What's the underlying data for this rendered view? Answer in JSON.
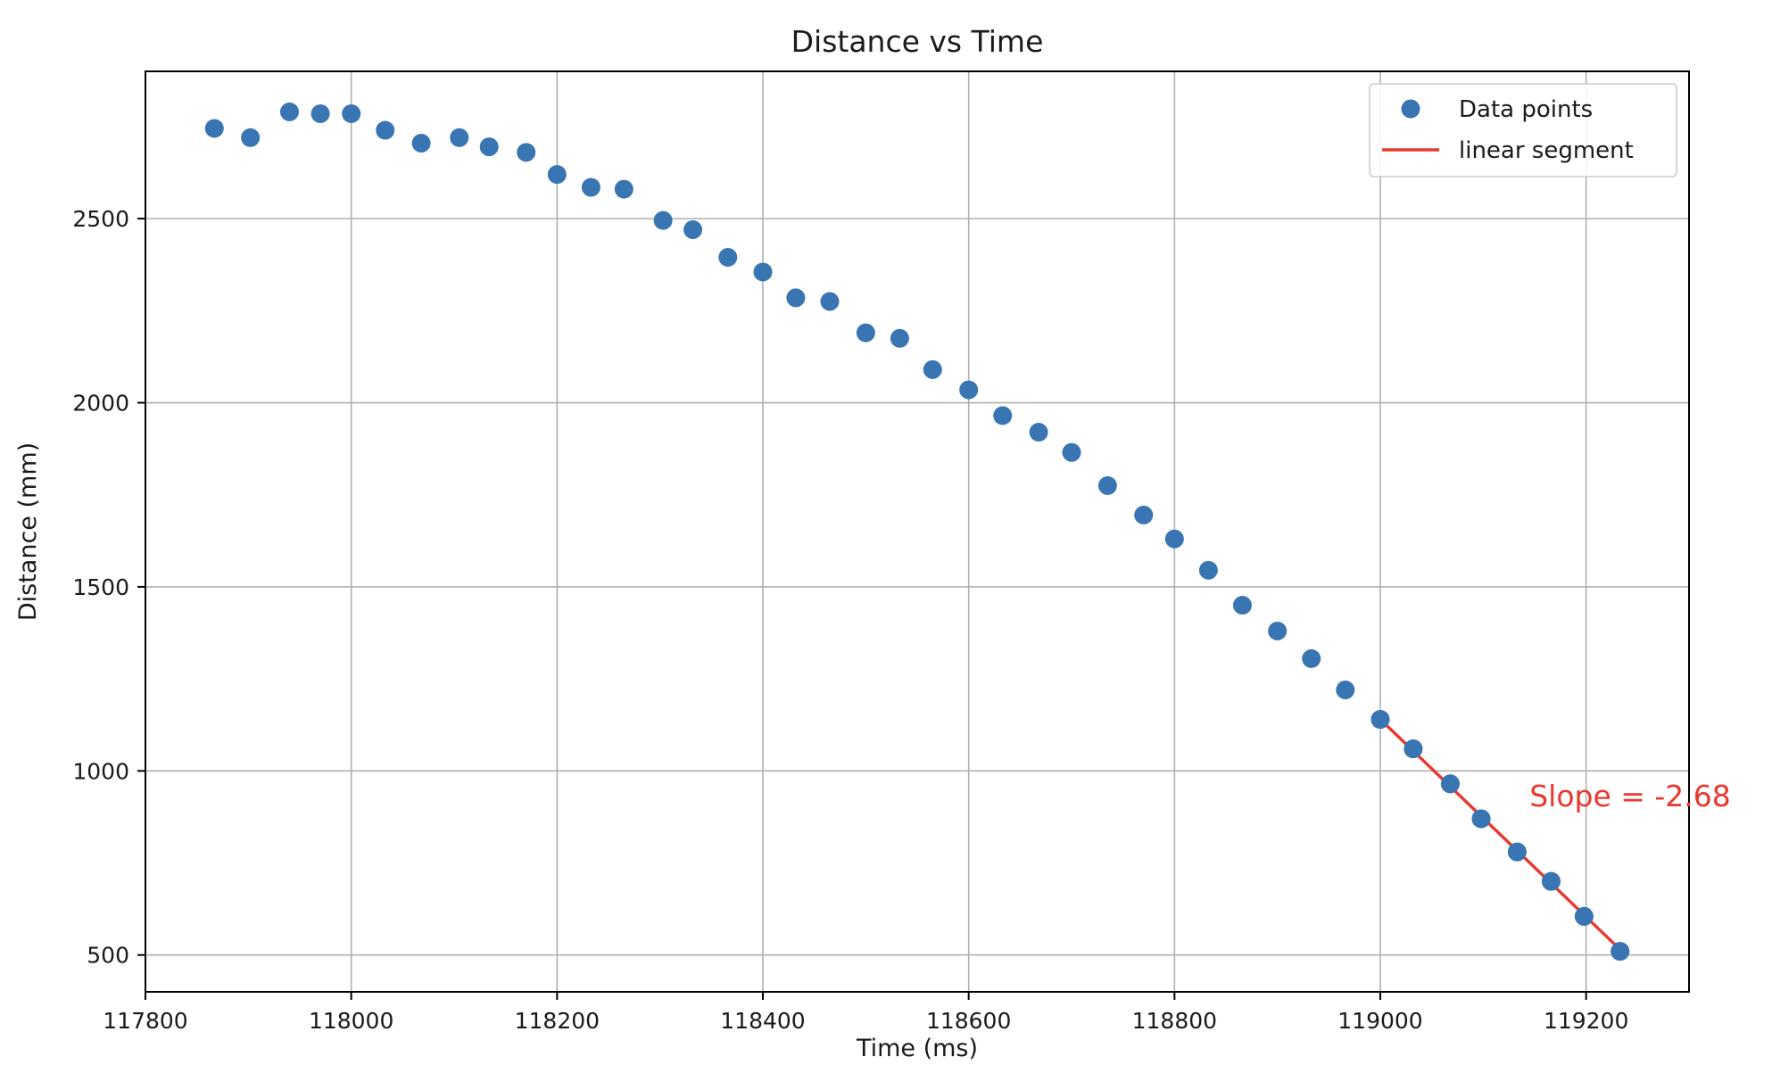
{
  "chart_data": {
    "type": "scatter",
    "title": "Distance vs Time",
    "xlabel": "Time (ms)",
    "ylabel": "Distance (mm)",
    "xlim": [
      117800,
      119300
    ],
    "ylim": [
      400,
      2900
    ],
    "xticks": [
      117800,
      118000,
      118200,
      118400,
      118600,
      118800,
      119000,
      119200
    ],
    "yticks": [
      500,
      1000,
      1500,
      2000,
      2500
    ],
    "grid": true,
    "legend_position": "top-right",
    "series": [
      {
        "name": "Data points",
        "kind": "scatter",
        "color": "#3a75b3",
        "x": [
          117867,
          117902,
          117940,
          117970,
          118000,
          118033,
          118068,
          118105,
          118134,
          118170,
          118200,
          118233,
          118265,
          118303,
          118332,
          118366,
          118400,
          118432,
          118465,
          118500,
          118533,
          118565,
          118600,
          118633,
          118668,
          118700,
          118735,
          118770,
          118800,
          118833,
          118866,
          118900,
          118933,
          118966,
          119000,
          119032,
          119068,
          119098,
          119133,
          119166,
          119198,
          119233
        ],
        "y": [
          2745,
          2720,
          2790,
          2785,
          2785,
          2740,
          2705,
          2720,
          2695,
          2680,
          2620,
          2585,
          2580,
          2495,
          2470,
          2395,
          2355,
          2285,
          2275,
          2190,
          2175,
          2090,
          2035,
          1965,
          1920,
          1865,
          1775,
          1695,
          1630,
          1545,
          1450,
          1380,
          1305,
          1220,
          1140,
          1060,
          965,
          870,
          780,
          700,
          605,
          510
        ]
      },
      {
        "name": "linear segment",
        "kind": "line",
        "color": "#e8382f",
        "x": [
          119000,
          119233
        ],
        "y": [
          1140,
          515
        ]
      }
    ],
    "annotations": [
      {
        "text": "Slope = -2.68",
        "x": 119145,
        "y": 930,
        "color": "#e8382f"
      }
    ]
  }
}
